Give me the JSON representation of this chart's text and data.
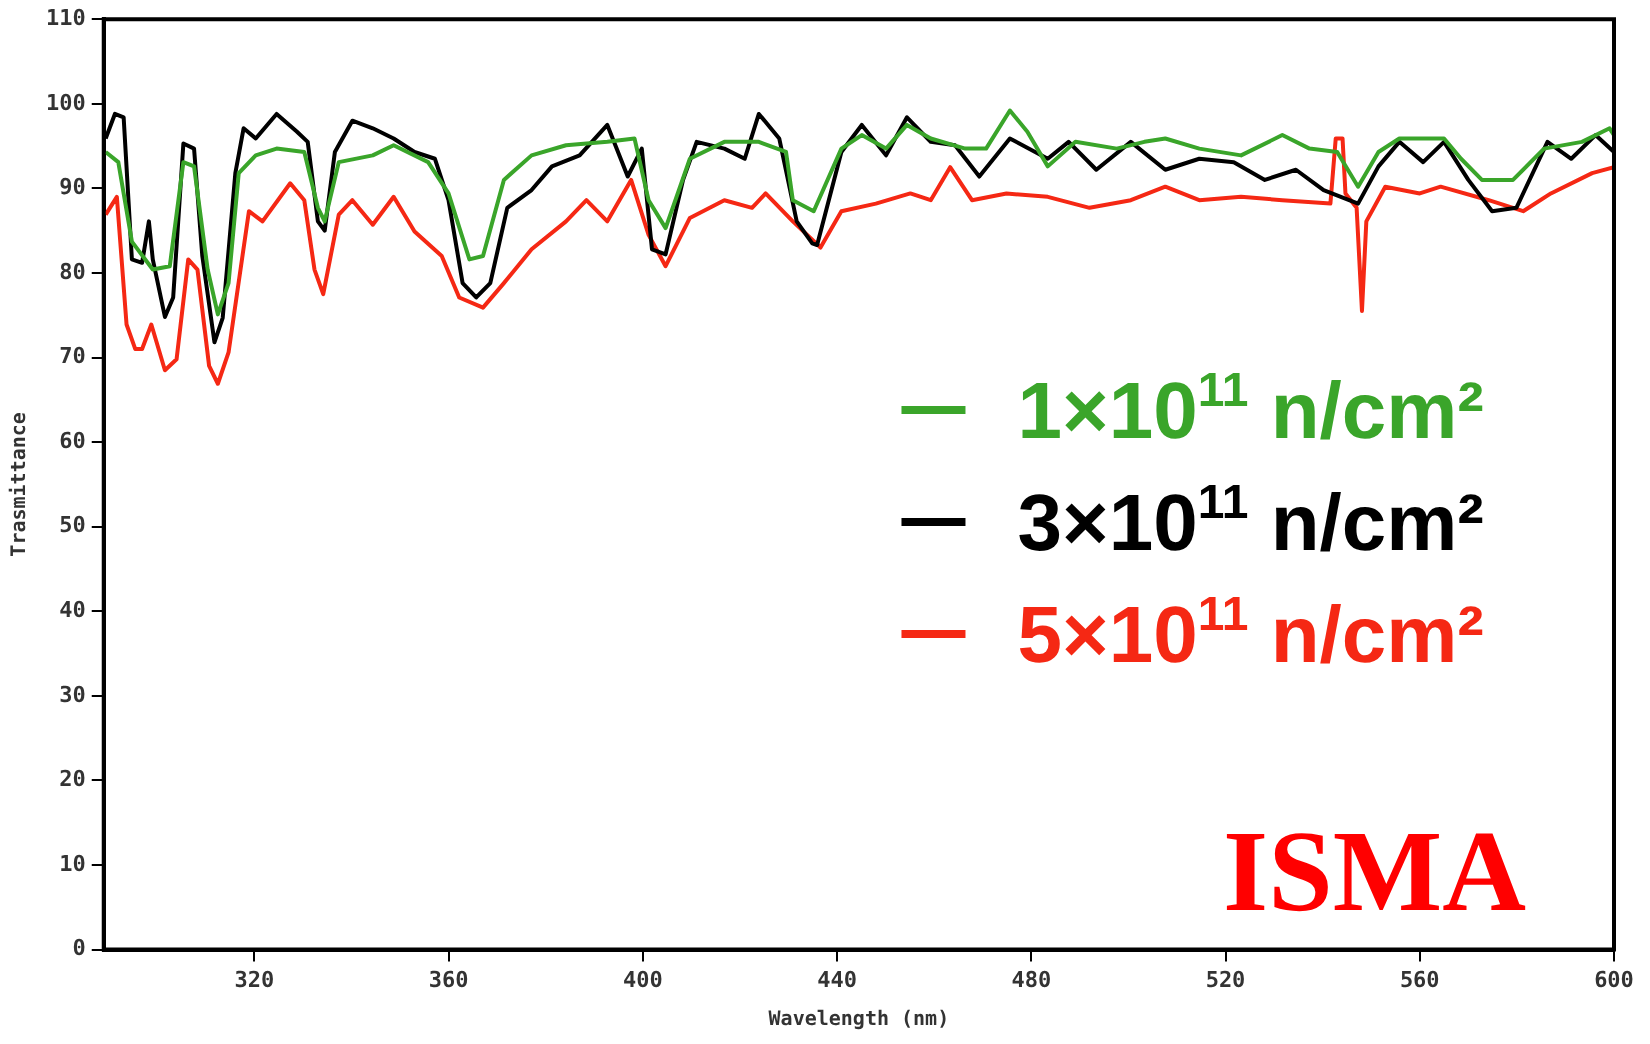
{
  "chart_data": {
    "type": "line",
    "xlabel": "Wavelength (nm)",
    "ylabel": "Trasmittance",
    "xlim": [
      289,
      600
    ],
    "xticks": [
      320,
      360,
      400,
      440,
      480,
      520,
      560,
      600
    ],
    "ylim": [
      0,
      110
    ],
    "yticks": [
      0,
      10,
      20,
      30,
      40,
      50,
      60,
      70,
      80,
      90,
      100,
      110
    ],
    "grid": false,
    "legend": "right",
    "marker": "none",
    "line_style": "solid",
    "annotations": [
      "ISMA"
    ],
    "series": [
      {
        "name": "1×10$^{11}$ n/cm²",
        "color": "#3aa52a",
        "x": [
          289.4,
          292,
          294.8,
          299.1,
          302.6,
          305.4,
          307.6,
          310.4,
          312.5,
          314.7,
          316.8,
          320.3,
          324.6,
          330.3,
          333.1,
          334.5,
          337.4,
          344.4,
          348.7,
          355.8,
          360,
          364.3,
          367.1,
          371.4,
          377.1,
          384.2,
          392.7,
          398.3,
          401.2,
          404.7,
          409.7,
          416.8,
          423.9,
          429.5,
          430.9,
          435.2,
          440.9,
          445.1,
          450.1,
          454.4,
          459.3,
          466.4,
          470.7,
          475.6,
          479.2,
          483.4,
          489.1,
          497.6,
          503.3,
          507.6,
          514.6,
          523.2,
          531.7,
          537.3,
          543,
          547.3,
          551.5,
          555.8,
          565,
          568.5,
          572.8,
          579.2,
          585.6,
          593.4,
          599.1,
          600
        ],
        "values": [
          94.3,
          93.1,
          83.7,
          80.4,
          80.8,
          93.1,
          92.6,
          80.4,
          75.1,
          78.8,
          91.8,
          93.9,
          94.7,
          94.3,
          87.7,
          86.1,
          93.1,
          93.9,
          95.1,
          93.1,
          89.4,
          81.6,
          82,
          91,
          93.9,
          95.1,
          95.5,
          95.9,
          88.6,
          85.3,
          93.5,
          95.5,
          95.5,
          94.3,
          88.6,
          87.3,
          94.7,
          96.3,
          94.7,
          97.5,
          95.9,
          94.7,
          94.7,
          99.2,
          96.7,
          92.6,
          95.5,
          94.7,
          95.5,
          95.9,
          94.7,
          93.9,
          96.3,
          94.7,
          94.3,
          90.2,
          94.3,
          95.9,
          95.9,
          93.5,
          91,
          91,
          94.7,
          95.5,
          97.1,
          96.3
        ]
      },
      {
        "name": "3×10$^{11}$ n/cm²",
        "color": "#000000",
        "x": [
          289.4,
          291.3,
          293.1,
          294.8,
          296.9,
          298.3,
          299.1,
          301.6,
          303.3,
          305.4,
          307.6,
          309.3,
          311.8,
          313.5,
          316.1,
          317.8,
          320.3,
          324.6,
          328.8,
          331,
          333.1,
          334.5,
          336.6,
          340.2,
          344.4,
          348.7,
          353,
          357.2,
          360,
          362.9,
          365.7,
          368.6,
          372.1,
          377.1,
          381.3,
          387,
          392.7,
          396.9,
          399.8,
          401.9,
          404.7,
          408.3,
          411.1,
          416.8,
          421,
          423.9,
          428.1,
          431.7,
          434.9,
          435.9,
          440.9,
          445.1,
          450.1,
          454.4,
          459.3,
          464.3,
          469.3,
          475.6,
          483.4,
          487.7,
          493.4,
          500.5,
          507.6,
          514.6,
          521.7,
          528.1,
          534.5,
          540.2,
          547.3,
          551.5,
          555.8,
          560.7,
          565,
          570,
          574.9,
          579.9,
          586.3,
          591.2,
          596.2,
          600
        ],
        "values": [
          95.9,
          98.8,
          98.4,
          81.6,
          81.2,
          86.1,
          81.6,
          74.8,
          77.1,
          95.3,
          94.7,
          82,
          71.8,
          74.7,
          91.8,
          97.1,
          95.9,
          98.8,
          96.7,
          95.5,
          86.1,
          85,
          94.3,
          98,
          97.1,
          95.9,
          94.3,
          93.5,
          88.6,
          78.8,
          77.1,
          78.8,
          87.7,
          89.8,
          92.6,
          93.9,
          97.5,
          91.4,
          94.7,
          82.8,
          82.2,
          91,
          95.5,
          94.7,
          93.5,
          98.8,
          95.9,
          86.1,
          83.5,
          83.3,
          94.3,
          97.5,
          93.9,
          98.4,
          95.5,
          95.1,
          91.4,
          95.9,
          93.5,
          95.5,
          92.2,
          95.5,
          92.2,
          93.5,
          93.1,
          91,
          92.2,
          89.8,
          88.2,
          92.6,
          95.5,
          93.1,
          95.5,
          91,
          87.3,
          87.7,
          95.5,
          93.5,
          96.3,
          94.3
        ]
      },
      {
        "name": "5×10$^{11}$ n/cm²",
        "color": "#f52814",
        "x": [
          289.4,
          291.7,
          293.7,
          295.5,
          296.9,
          298.8,
          301.6,
          304,
          306.4,
          308.3,
          310.7,
          312.5,
          314.7,
          318.9,
          321.7,
          327.4,
          330.3,
          332.4,
          334.2,
          337.4,
          340.2,
          344.4,
          348.7,
          353,
          358.6,
          362.2,
          367.1,
          371.4,
          377.1,
          384.2,
          388.4,
          392.7,
          397.6,
          401.2,
          404.7,
          409.7,
          416.8,
          422.5,
          425.3,
          430.9,
          436.6,
          440.9,
          448,
          455.1,
          459.3,
          463.3,
          467.8,
          474.9,
          483.4,
          492,
          500.5,
          507.6,
          514.6,
          523.2,
          531.7,
          541.6,
          542.7,
          544.1,
          544.7,
          547,
          548.1,
          549,
          552.9,
          560,
          564.3,
          574.2,
          581.3,
          587,
          595.5,
          600
        ],
        "values": [
          86.9,
          89,
          73.9,
          71,
          71,
          73.9,
          68.5,
          69.8,
          81.6,
          80.4,
          69,
          66.9,
          70.6,
          87.3,
          86.1,
          90.6,
          88.6,
          80.4,
          77.5,
          86.9,
          88.6,
          85.7,
          89,
          84.9,
          82,
          77.1,
          75.9,
          78.8,
          82.8,
          86.1,
          88.6,
          86.1,
          91,
          84.5,
          80.8,
          86.5,
          88.6,
          87.7,
          89.4,
          86.1,
          83,
          87.3,
          88.2,
          89.4,
          88.6,
          92.5,
          88.6,
          89.4,
          89,
          87.7,
          88.6,
          90.2,
          88.6,
          89,
          88.6,
          88.2,
          95.9,
          95.9,
          89.4,
          87.7,
          75.5,
          86.1,
          90.2,
          89.4,
          90.2,
          88.6,
          87.3,
          89.4,
          91.8,
          92.5
        ]
      }
    ]
  }
}
